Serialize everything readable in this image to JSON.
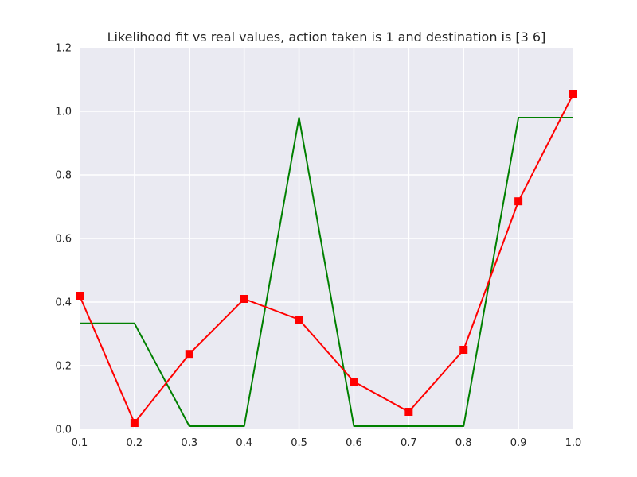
{
  "chart_data": {
    "type": "line",
    "title": "Likelihood fit vs real values, action taken is 1 and destination is [3 6]",
    "xlabel": "",
    "ylabel": "",
    "xlim": [
      0.1,
      1.0
    ],
    "ylim": [
      0.0,
      1.2
    ],
    "xticks": [
      "0.1",
      "0.2",
      "0.3",
      "0.4",
      "0.5",
      "0.6",
      "0.7",
      "0.8",
      "0.9",
      "1.0"
    ],
    "yticks": [
      "0.0",
      "0.2",
      "0.4",
      "0.6",
      "0.8",
      "1.0",
      "1.2"
    ],
    "grid": true,
    "background_color": "#eaeaf2",
    "grid_color": "#ffffff",
    "series": [
      {
        "color": "#008000",
        "marker": "none",
        "x": [
          0.1,
          0.2,
          0.3,
          0.4,
          0.5,
          0.6,
          0.7,
          0.8,
          0.9,
          1.0
        ],
        "y": [
          0.333,
          0.333,
          0.01,
          0.01,
          0.98,
          0.01,
          0.01,
          0.01,
          0.98,
          0.98
        ]
      },
      {
        "color": "#ff0000",
        "marker": "square",
        "x": [
          0.1,
          0.2,
          0.3,
          0.4,
          0.5,
          0.6,
          0.7,
          0.8,
          0.9,
          1.0
        ],
        "y": [
          0.42,
          0.02,
          0.237,
          0.41,
          0.345,
          0.15,
          0.055,
          0.25,
          0.717,
          1.055
        ]
      }
    ]
  }
}
